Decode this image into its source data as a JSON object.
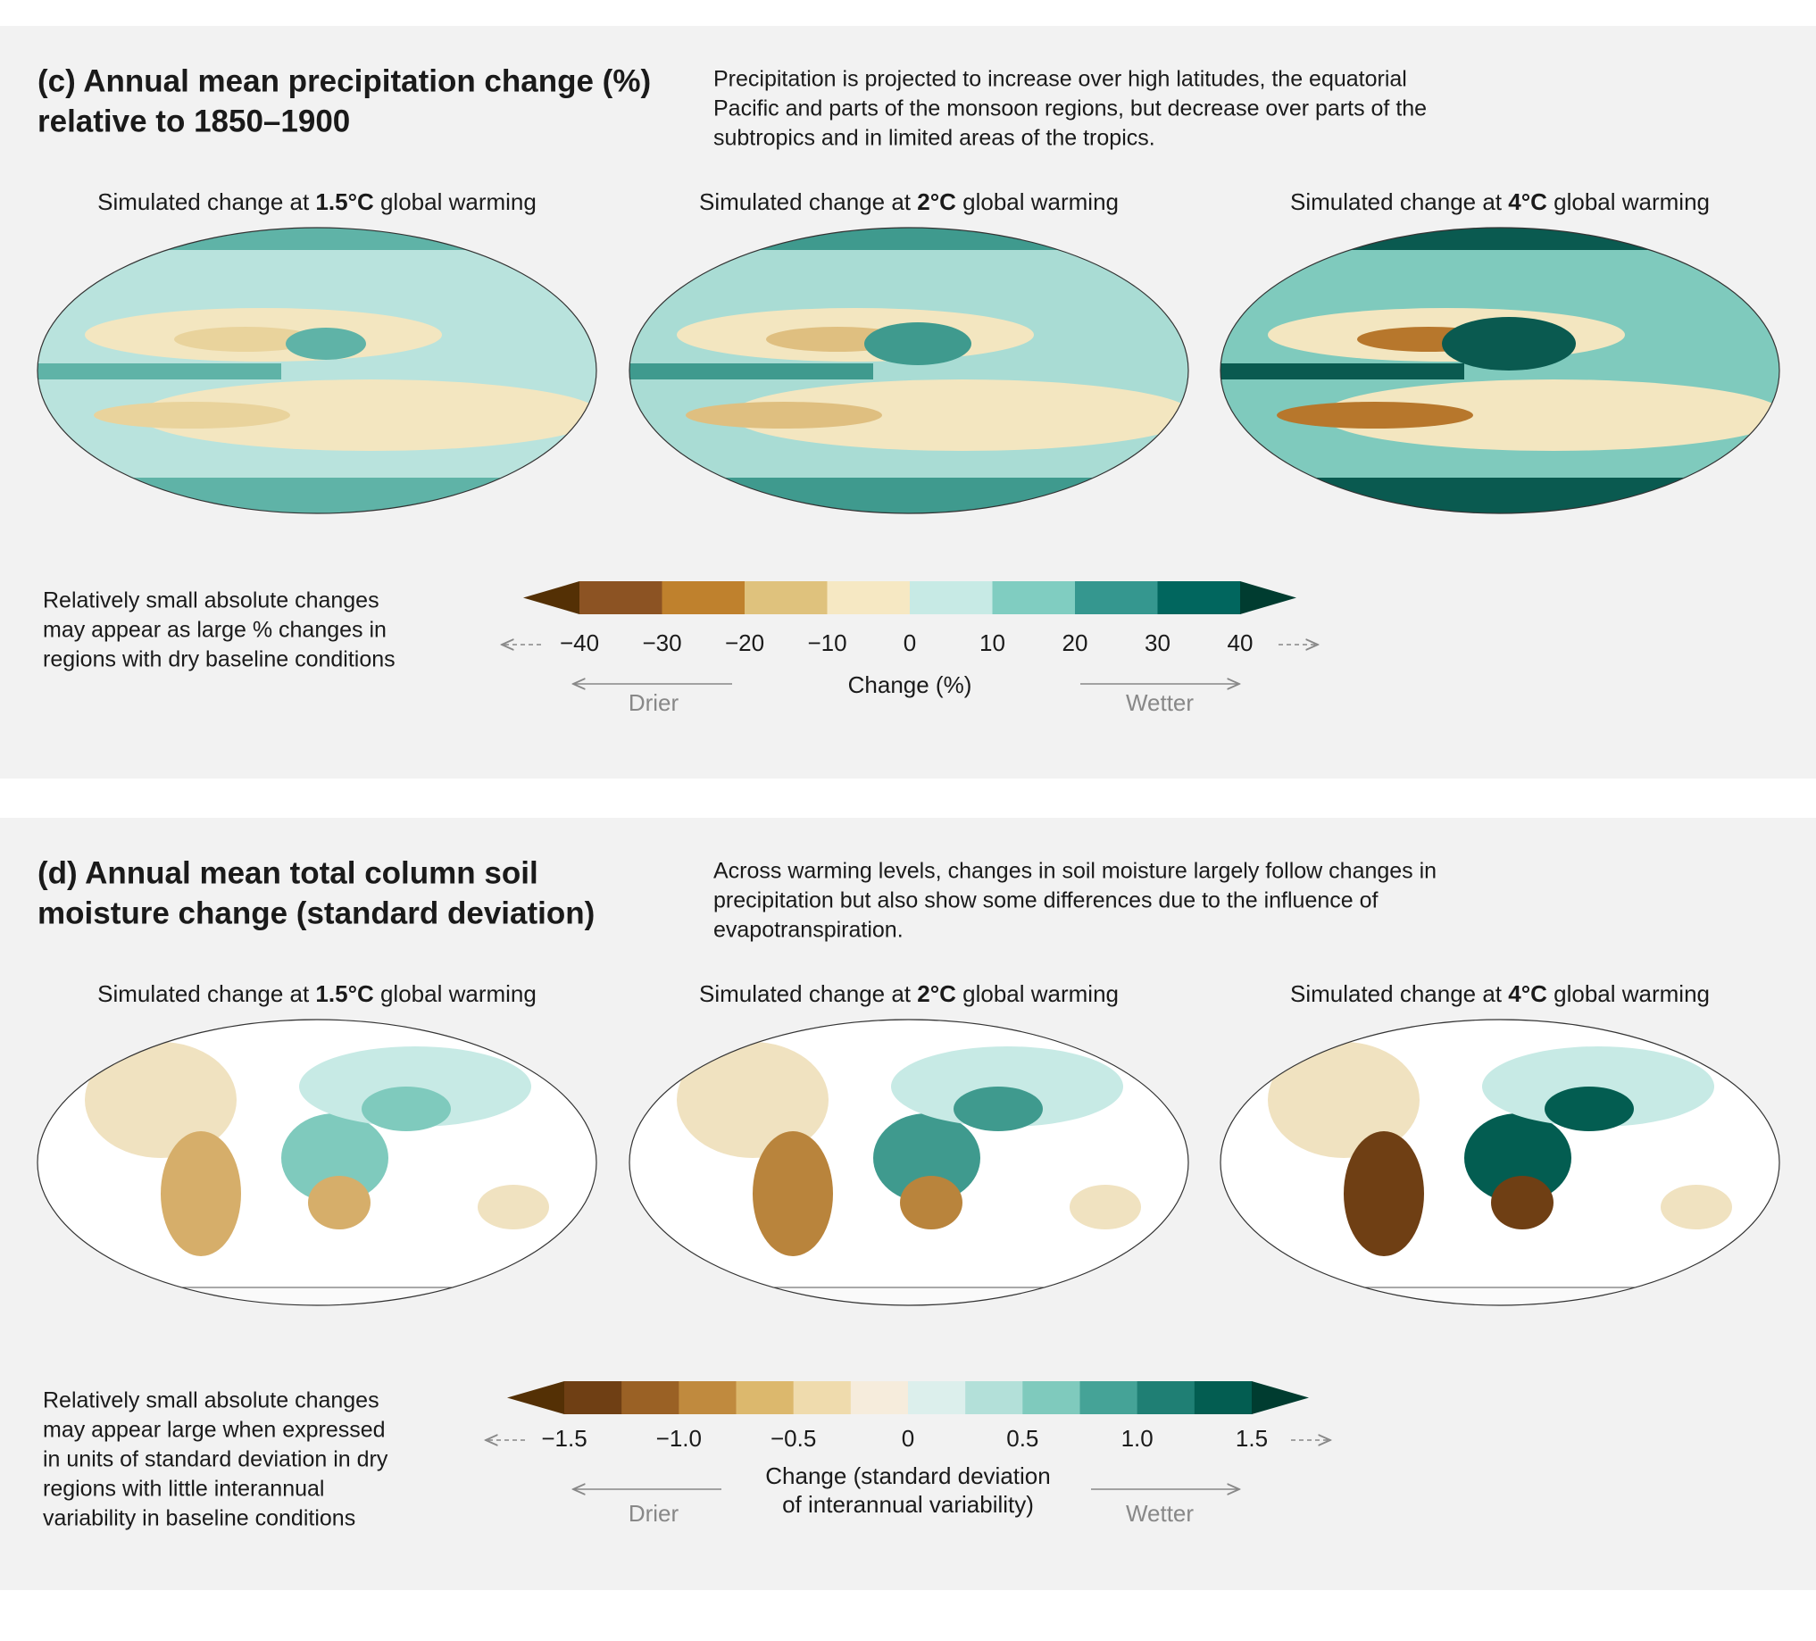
{
  "panels": [
    {
      "title": [
        "(c) Annual mean precipitation change (%)",
        "relative to 1850–1900"
      ],
      "description": [
        "Precipitation is projected to increase over high latitudes, the equatorial",
        "Pacific and parts of the monsoon regions, but decrease over parts of the",
        "subtropics and in limited areas of the tropics."
      ],
      "maps": [
        {
          "prefix": "Simulated change at ",
          "bold": "1.5°C",
          "suffix": " global warming"
        },
        {
          "prefix": "Simulated change at ",
          "bold": "2°C",
          "suffix": " global warming"
        },
        {
          "prefix": "Simulated change at ",
          "bold": "4°C",
          "suffix": " global warming"
        }
      ],
      "note": [
        "Relatively small absolute changes",
        "may appear as large % changes in",
        "regions with dry baseline conditions"
      ],
      "colorbar": {
        "lim": [
          -40,
          40
        ],
        "ticks": [
          {
            "value": -40,
            "label": "−40"
          },
          {
            "value": -30,
            "label": "−30"
          },
          {
            "value": -20,
            "label": "−20"
          },
          {
            "value": -10,
            "label": "−10"
          },
          0,
          10,
          20,
          30,
          40
        ],
        "colors": [
          "#8c5323",
          "#bf812d",
          "#dfc27d",
          "#f6e8c3",
          "#c7eae5",
          "#80cdc1",
          "#35978f",
          "#01665e"
        ],
        "under_color": "#543005",
        "over_color": "#003c30",
        "label": [
          "Change (%)"
        ],
        "drier": "Drier",
        "wetter": "Wetter"
      }
    },
    {
      "title": [
        "(d) Annual mean total column soil",
        "moisture change (standard deviation)"
      ],
      "description": [
        "Across warming levels, changes in soil moisture largely follow changes in",
        "precipitation but also show some differences due to the influence of",
        "evapotranspiration."
      ],
      "maps": [
        {
          "prefix": "Simulated change at ",
          "bold": "1.5°C",
          "suffix": " global warming"
        },
        {
          "prefix": "Simulated change at ",
          "bold": "2°C",
          "suffix": " global warming"
        },
        {
          "prefix": "Simulated change at ",
          "bold": "4°C",
          "suffix": " global warming"
        }
      ],
      "note": [
        "Relatively small absolute changes",
        "may appear large when expressed",
        "in units of standard deviation in dry",
        "regions with little interannual",
        "variability in baseline conditions"
      ],
      "colorbar": {
        "lim": [
          -1.5,
          1.5
        ],
        "ticks": [
          {
            "value": -1.5,
            "label": "−1.5"
          },
          {
            "value": -1,
            "label": "−1.0"
          },
          {
            "value": -0.5,
            "label": "−0.5"
          },
          0,
          0.5,
          {
            "value": 1,
            "label": "1.0"
          },
          1.5
        ],
        "colors": [
          "#6f3f14",
          "#9a6125",
          "#c08a3e",
          "#dcb86d",
          "#efdbad",
          "#f6ecdc",
          "#dcefec",
          "#b3e0d9",
          "#7fcabd",
          "#45a397",
          "#1f7f74",
          "#035d51"
        ],
        "under_color": "#543005",
        "over_color": "#003c30",
        "label": [
          "Change (standard deviation",
          "of interannual variability)"
        ],
        "drier": "Drier",
        "wetter": "Wetter"
      }
    }
  ]
}
